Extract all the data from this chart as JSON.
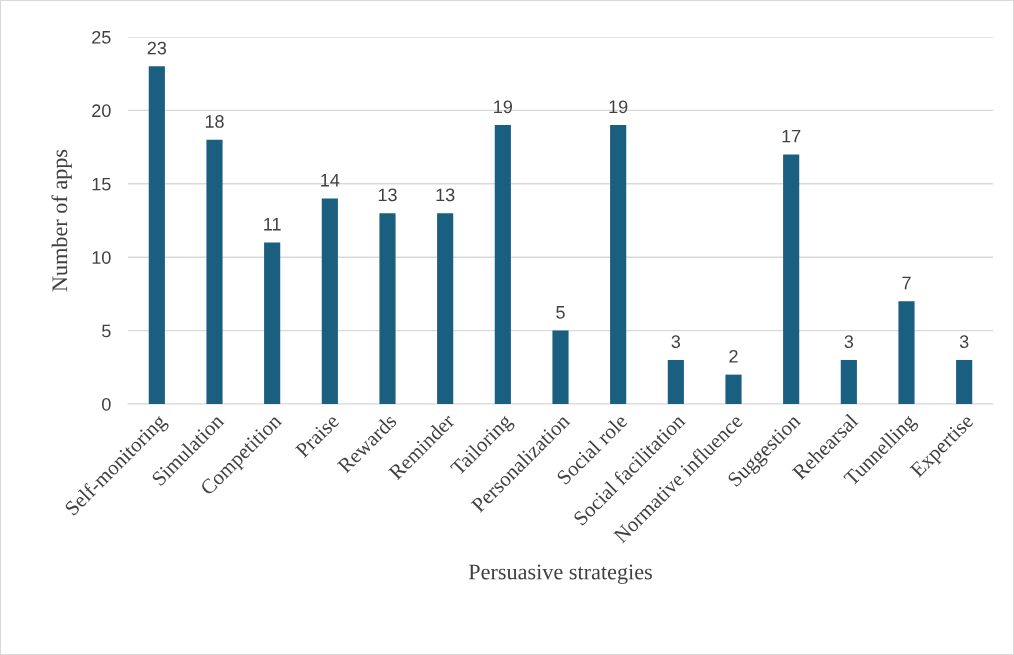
{
  "chart_data": {
    "type": "bar",
    "xlabel": "Persuasive strategies",
    "ylabel": "Number of apps",
    "categories": [
      "Self-monitoring",
      "Simulation",
      "Competition",
      "Praise",
      "Rewards",
      "Reminder",
      "Tailoring",
      "Personalization",
      "Social role",
      "Social facilitation",
      "Normative influence",
      "Suggestion",
      "Rehearsal",
      "Tunnelling",
      "Expertise"
    ],
    "values": [
      23,
      18,
      11,
      14,
      13,
      13,
      19,
      5,
      19,
      3,
      2,
      17,
      3,
      7,
      3
    ],
    "color": "#1a5e80",
    "ylim": [
      0,
      25
    ],
    "yticks": [
      0,
      5,
      10,
      15,
      20,
      25
    ],
    "grid": "y",
    "data_labels": true
  }
}
